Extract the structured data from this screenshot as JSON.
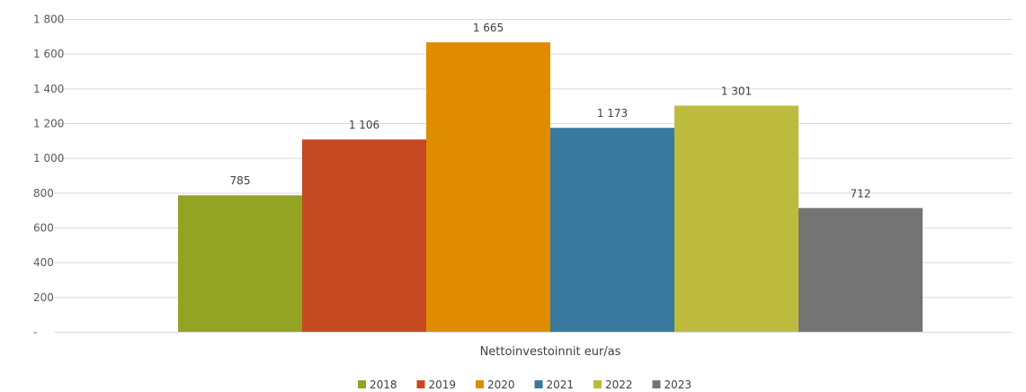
{
  "chart_data": {
    "type": "bar",
    "categories": [
      "Nettoinvestoinnit eur/as"
    ],
    "series": [
      {
        "name": "2018",
        "values": [
          785
        ],
        "value_label": "785",
        "color": "#93a323"
      },
      {
        "name": "2019",
        "values": [
          1106
        ],
        "value_label": "1 106",
        "color": "#c54a22"
      },
      {
        "name": "2020",
        "values": [
          1665
        ],
        "value_label": "1 665",
        "color": "#e08c00"
      },
      {
        "name": "2021",
        "values": [
          1173
        ],
        "value_label": "1 173",
        "color": "#377a9e"
      },
      {
        "name": "2022",
        "values": [
          1301
        ],
        "value_label": "1 301",
        "color": "#bdbb3e"
      },
      {
        "name": "2023",
        "values": [
          712
        ],
        "value_label": "712",
        "color": "#747474"
      }
    ],
    "ylim": [
      0,
      1800
    ],
    "yticks": [
      {
        "value": 0,
        "label": "-"
      },
      {
        "value": 200,
        "label": "200"
      },
      {
        "value": 400,
        "label": "400"
      },
      {
        "value": 600,
        "label": "600"
      },
      {
        "value": 800,
        "label": "800"
      },
      {
        "value": 1000,
        "label": "1 000"
      },
      {
        "value": 1200,
        "label": "1 200"
      },
      {
        "value": 1400,
        "label": "1 400"
      },
      {
        "value": 1600,
        "label": "1 600"
      },
      {
        "value": 1800,
        "label": "1 800"
      }
    ],
    "grid": true,
    "legend": "bottom-center"
  }
}
